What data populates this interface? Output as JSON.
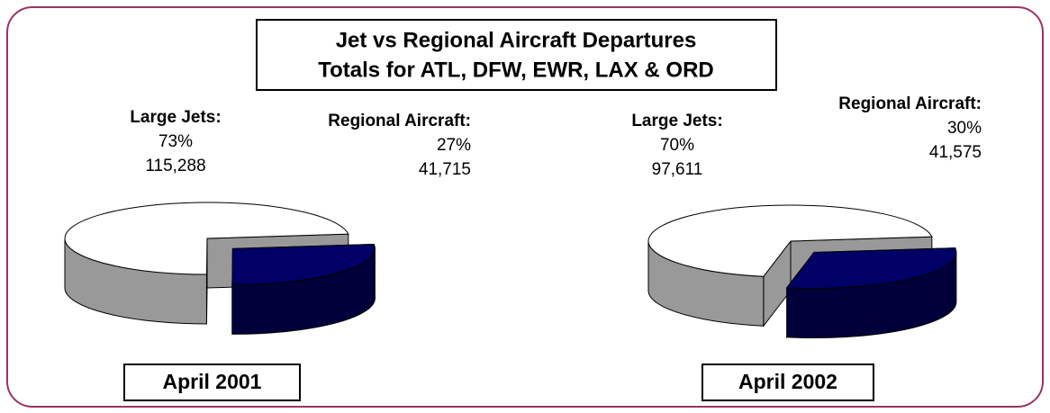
{
  "title": [
    "Jet vs Regional Aircraft Departures",
    "Totals for ATL, DFW, EWR, LAX & ORD"
  ],
  "chart_data": [
    {
      "type": "pie",
      "title": "April 2001",
      "categories": [
        "Large Jets:",
        "Regional Aircraft:"
      ],
      "values": [
        73,
        27
      ],
      "value_labels": [
        "73%",
        "27%"
      ],
      "counts": [
        115288,
        41715
      ],
      "count_labels": [
        "115,288",
        "41,715"
      ],
      "colors": [
        "#ffffff",
        "#000066"
      ]
    },
    {
      "type": "pie",
      "title": "April 2002",
      "categories": [
        "Large Jets:",
        "Regional Aircraft:"
      ],
      "values": [
        70,
        30
      ],
      "value_labels": [
        "70%",
        "30%"
      ],
      "counts": [
        97611,
        41575
      ],
      "count_labels": [
        "97,611",
        "41,575"
      ],
      "colors": [
        "#ffffff",
        "#000066"
      ]
    }
  ]
}
